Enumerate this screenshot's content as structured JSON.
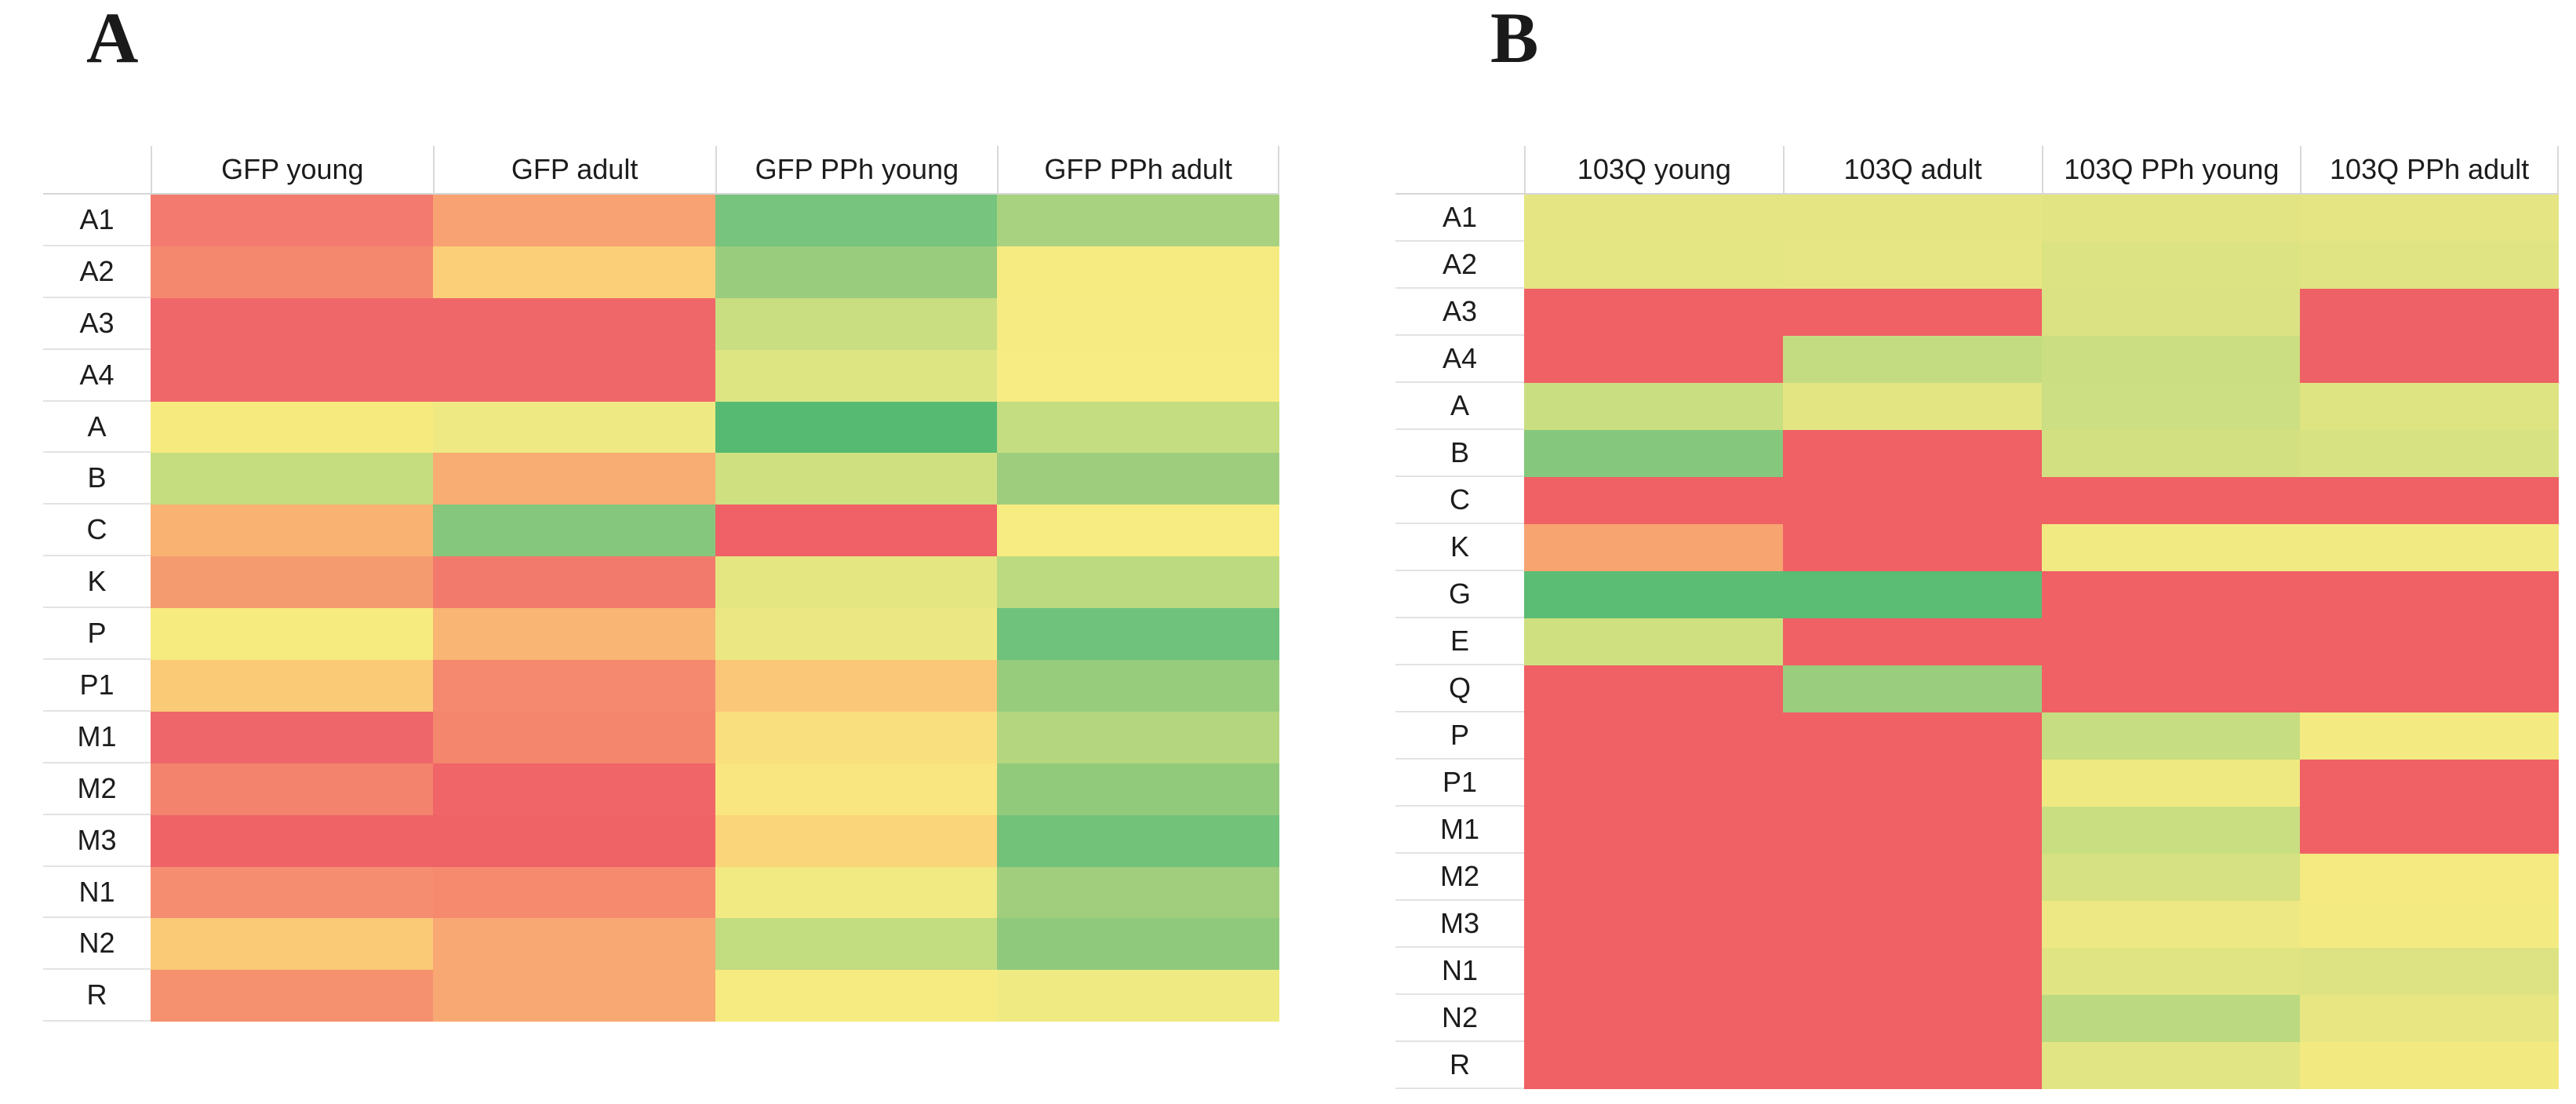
{
  "figure_title": "",
  "chart_data": [
    {
      "type": "heatmap",
      "panel_label": "A",
      "columns": [
        "GFP young",
        "GFP adult",
        "GFP PPh young",
        "GFP PPh adult"
      ],
      "rows": [
        "A1",
        "A2",
        "A3",
        "A4",
        "A",
        "B",
        "C",
        "K",
        "P",
        "P1",
        "M1",
        "M2",
        "M3",
        "N1",
        "N2",
        "R"
      ],
      "legend_position": "none",
      "grid": false,
      "color_scale": {
        "low": "#EF6166",
        "mid": "#F6EB80",
        "high": "#56BA73"
      },
      "cell_colors": [
        [
          "#F37A6E",
          "#F8A172",
          "#76C47D",
          "#A8D27F"
        ],
        [
          "#F4886F",
          "#FACF78",
          "#9ACC7D",
          "#F6EB81"
        ],
        [
          "#F0676A",
          "#F0676A",
          "#C9DE81",
          "#F6EB82"
        ],
        [
          "#F0676A",
          "#F0676A",
          "#DDE482",
          "#F7EC83"
        ],
        [
          "#F6EA7F",
          "#EFE984",
          "#56BA73",
          "#C4DD80"
        ],
        [
          "#C6DD7F",
          "#F8AD72",
          "#CFE081",
          "#9ECE7D"
        ],
        [
          "#F9B272",
          "#85C77C",
          "#EF6166",
          "#F6EC82"
        ],
        [
          "#F59B70",
          "#F27A6C",
          "#E4E682",
          "#BCDA7F"
        ],
        [
          "#F6EB7F",
          "#F9B573",
          "#EBE883",
          "#6FC27B"
        ],
        [
          "#FACA76",
          "#F4896F",
          "#FAC778",
          "#97CC7D"
        ],
        [
          "#EF666A",
          "#F4866E",
          "#F9DF7D",
          "#B3D67E"
        ],
        [
          "#F4836D",
          "#EF6568",
          "#F9E680",
          "#92CA7C"
        ],
        [
          "#EF6367",
          "#EF6367",
          "#FBD57A",
          "#72C27A"
        ],
        [
          "#F58D70",
          "#F58A6F",
          "#F1E982",
          "#A0CE7D"
        ],
        [
          "#FBCA77",
          "#F8A873",
          "#C2DC80",
          "#8FC97C"
        ],
        [
          "#F5916F",
          "#F8A872",
          "#F5EB81",
          "#F0EA83"
        ]
      ]
    },
    {
      "type": "heatmap",
      "panel_label": "B",
      "columns": [
        "103Q young",
        "103Q adult",
        "103Q PPh young",
        "103Q PPh adult"
      ],
      "rows": [
        "A1",
        "A2",
        "A3",
        "A4",
        "A",
        "B",
        "C",
        "K",
        "G",
        "E",
        "Q",
        "P",
        "P1",
        "M1",
        "M2",
        "M3",
        "N1",
        "N2",
        "R"
      ],
      "legend_position": "none",
      "grid": false,
      "color_scale": {
        "low": "#EF6166",
        "mid": "#F6EB80",
        "high": "#5BBC73"
      },
      "cell_colors": [
        [
          "#E5E583",
          "#E5E583",
          "#E2E483",
          "#E5E583"
        ],
        [
          "#E4E583",
          "#E7E684",
          "#DCE383",
          "#E0E483"
        ],
        [
          "#EF6165",
          "#EF6165",
          "#DBE283",
          "#EE6166"
        ],
        [
          "#EF6165",
          "#C4DC81",
          "#CBDE82",
          "#EE6166"
        ],
        [
          "#C9DE81",
          "#E3E583",
          "#CCDF82",
          "#DFE483"
        ],
        [
          "#85C77C",
          "#EF6165",
          "#D2E082",
          "#D7E283"
        ],
        [
          "#EF6165",
          "#EF6165",
          "#EF6165",
          "#EF6165"
        ],
        [
          "#F7A471",
          "#EF6165",
          "#F1EA82",
          "#F1EA82"
        ],
        [
          "#5BBC73",
          "#5BBC73",
          "#EF6165",
          "#EF6165"
        ],
        [
          "#CFE081",
          "#EF6165",
          "#EF6165",
          "#EF6165"
        ],
        [
          "#EF6165",
          "#9BCD7E",
          "#EF6165",
          "#EF6165"
        ],
        [
          "#EF6165",
          "#EF6165",
          "#C6DD81",
          "#F3EB82"
        ],
        [
          "#EF6165",
          "#EF6165",
          "#EFE982",
          "#EF6165"
        ],
        [
          "#EF6165",
          "#EF6165",
          "#C9DE81",
          "#EF6165"
        ],
        [
          "#EF6165",
          "#EF6165",
          "#D5E182",
          "#F4EA81"
        ],
        [
          "#EF6165",
          "#EF6165",
          "#EDE883",
          "#F3EA81"
        ],
        [
          "#EF6165",
          "#EF6165",
          "#E0E483",
          "#DDE383"
        ],
        [
          "#EF6165",
          "#EF6165",
          "#BBD980",
          "#E7E682"
        ],
        [
          "#EF6165",
          "#EF6165",
          "#E2E583",
          "#F2EA80"
        ]
      ]
    }
  ]
}
